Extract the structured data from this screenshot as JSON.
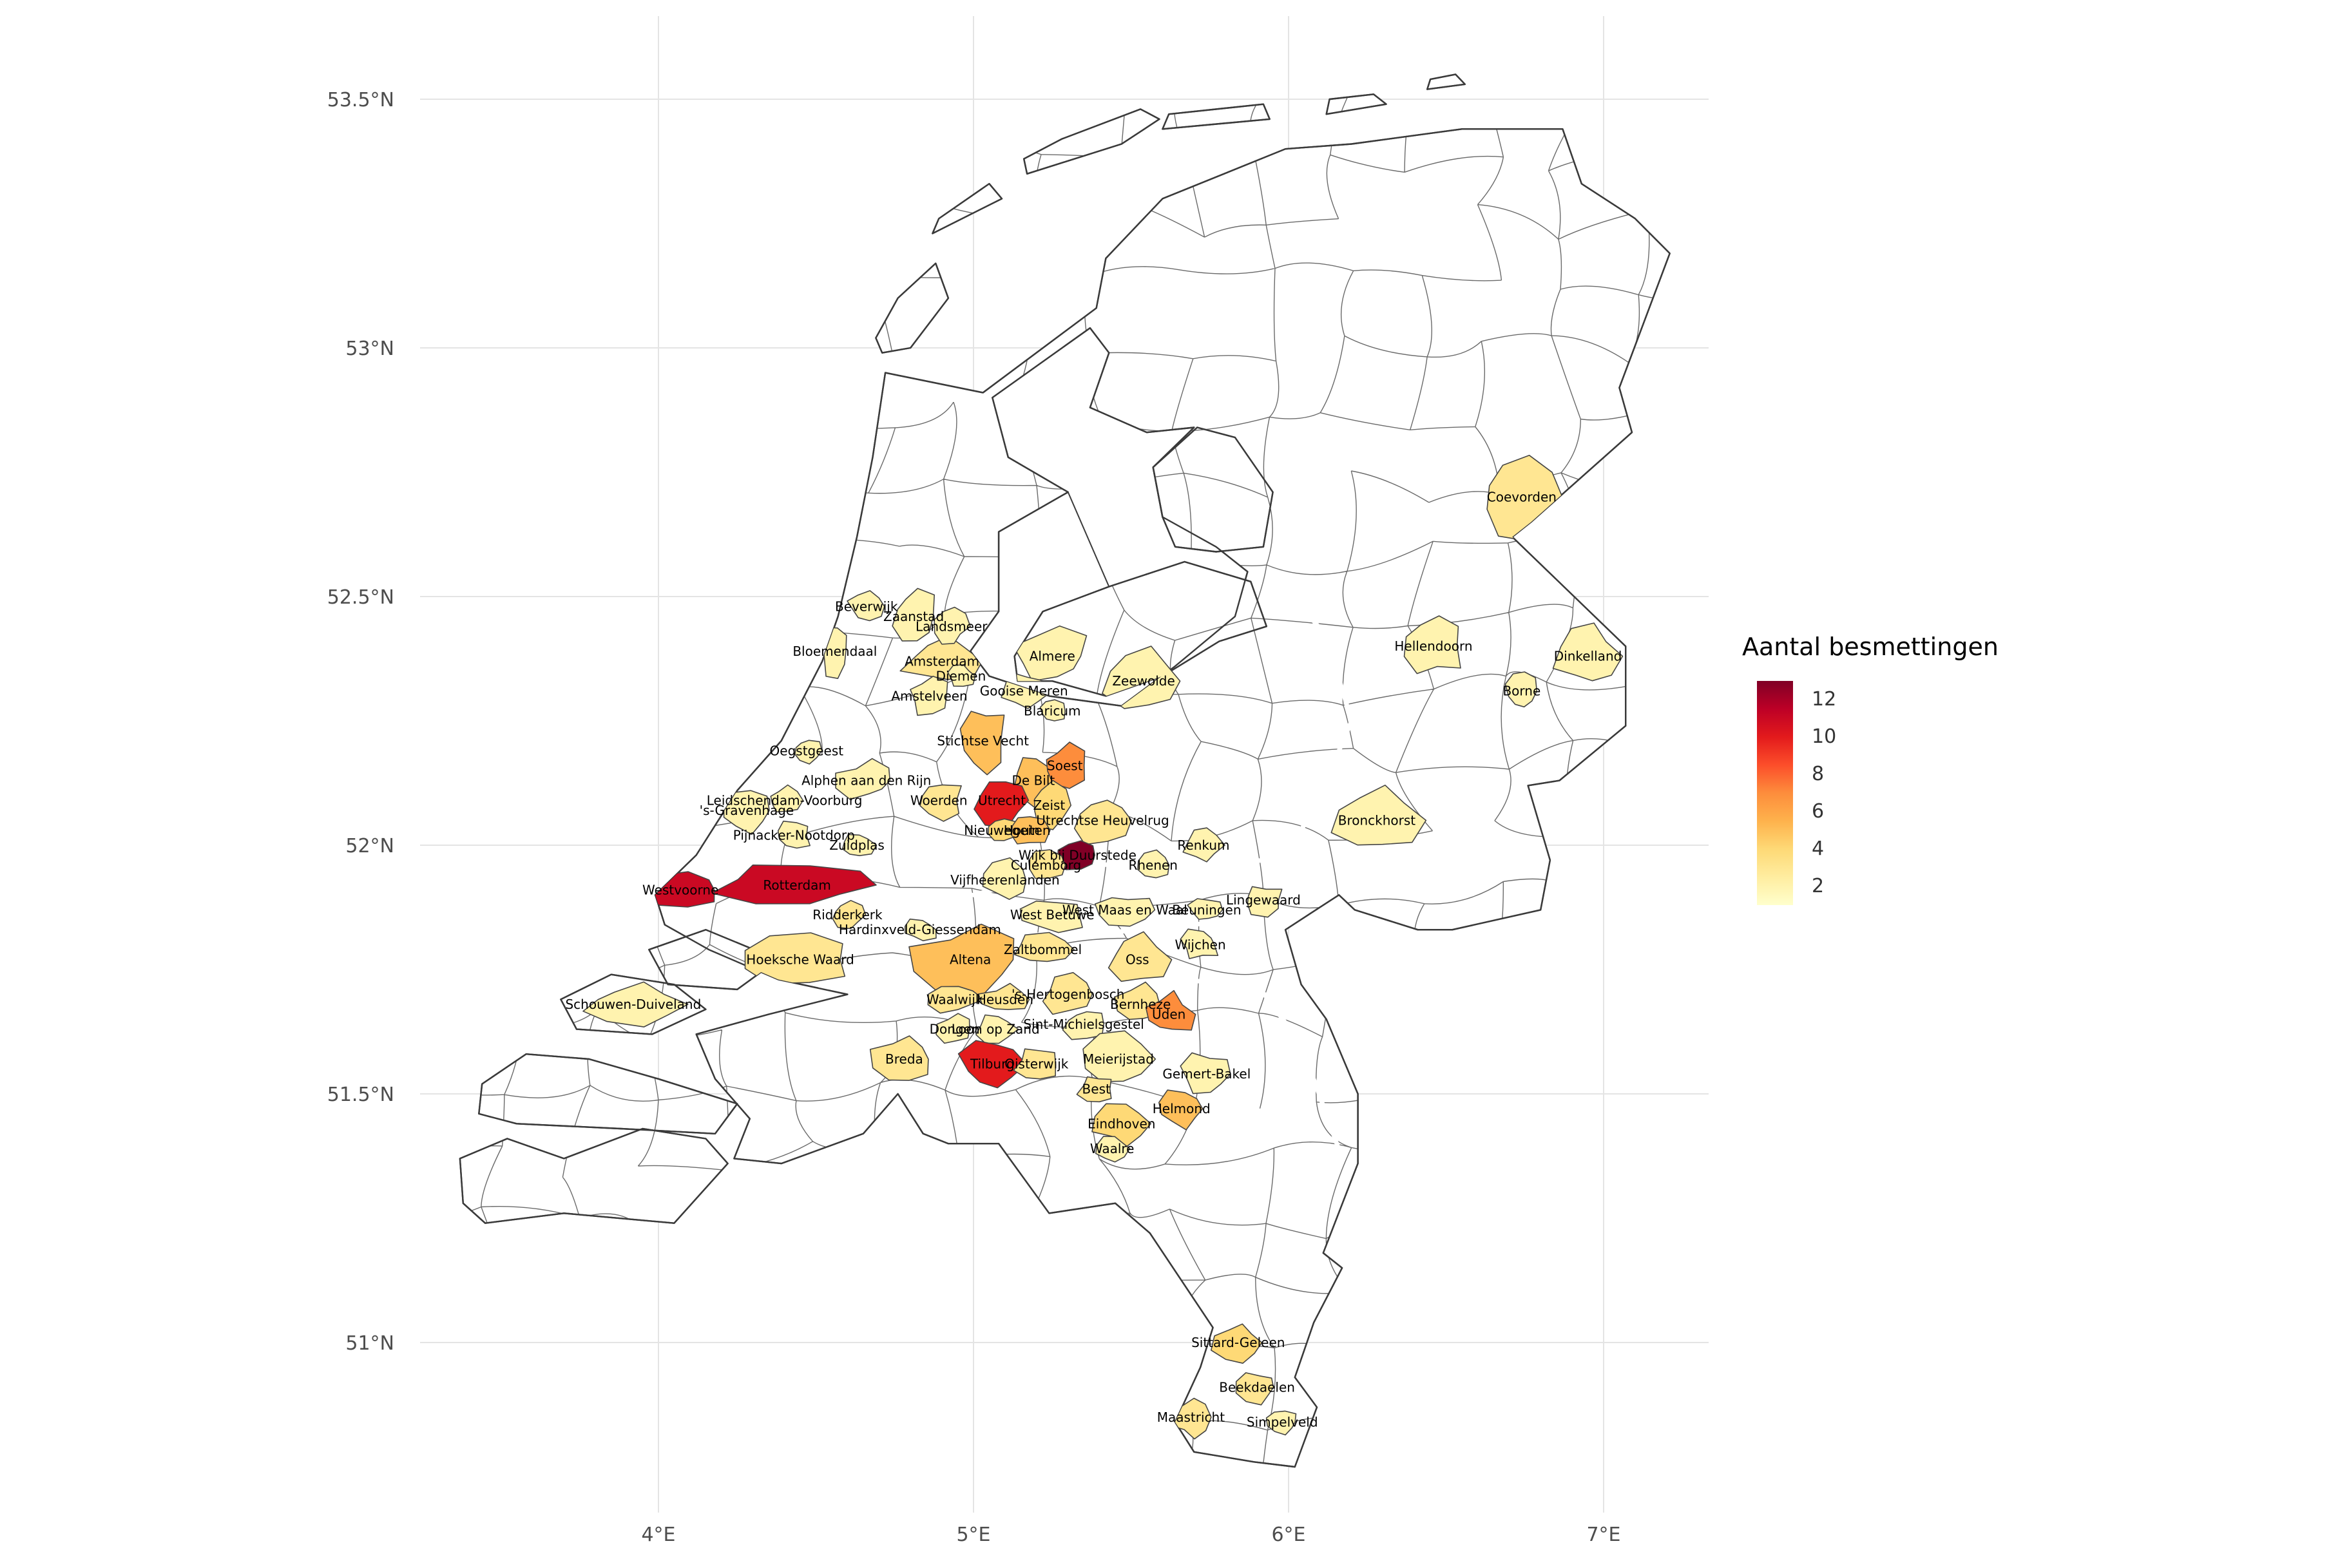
{
  "chart_data": {
    "type": "choropleth",
    "region": "Netherlands municipalities",
    "legend_title": "Aantal besmettingen",
    "color_scale": {
      "palette": [
        "#ffffcc",
        "#ffeda0",
        "#fed976",
        "#feb24c",
        "#fd8d3c",
        "#fc4e2a",
        "#e31a1c",
        "#bd0026",
        "#800026"
      ],
      "domain": [
        1,
        13
      ],
      "legend_ticks": [
        12,
        10,
        8,
        6,
        4,
        2
      ]
    },
    "x_axis": {
      "tick_labels": [
        "4°E",
        "5°E",
        "6°E",
        "7°E"
      ],
      "lons": [
        4,
        5,
        6,
        7
      ]
    },
    "y_axis": {
      "tick_labels": [
        "53.5°N",
        "53°N",
        "52.5°N",
        "52°N",
        "51.5°N",
        "51°N"
      ],
      "lats": [
        53.5,
        53,
        52.5,
        52,
        51.5,
        51
      ]
    },
    "municipalities": [
      {
        "name": "Coevorden",
        "lon": 6.74,
        "lat": 52.7,
        "value": 3,
        "rx": 62,
        "ry": 60
      },
      {
        "name": "Hellendoorn",
        "lon": 6.46,
        "lat": 52.4,
        "value": 2,
        "rx": 46,
        "ry": 44
      },
      {
        "name": "Dinkelland",
        "lon": 6.95,
        "lat": 52.38,
        "value": 2,
        "rx": 48,
        "ry": 46
      },
      {
        "name": "Borne",
        "lon": 6.74,
        "lat": 52.31,
        "value": 2,
        "rx": 26,
        "ry": 30
      },
      {
        "name": "Bronckhorst",
        "lon": 6.28,
        "lat": 52.05,
        "value": 2,
        "rx": 62,
        "ry": 46
      },
      {
        "name": "Zeewolde",
        "lon": 5.54,
        "lat": 52.33,
        "value": 2,
        "rx": 56,
        "ry": 46
      },
      {
        "name": "Almere",
        "lon": 5.25,
        "lat": 52.38,
        "value": 2,
        "rx": 56,
        "ry": 40
      },
      {
        "name": "Amsterdam",
        "lon": 4.9,
        "lat": 52.37,
        "value": 3,
        "rx": 56,
        "ry": 36
      },
      {
        "name": "Zaanstad",
        "lon": 4.81,
        "lat": 52.46,
        "value": 2,
        "rx": 34,
        "ry": 42
      },
      {
        "name": "Landsmeer",
        "lon": 4.93,
        "lat": 52.44,
        "value": 2,
        "rx": 24,
        "ry": 26
      },
      {
        "name": "Beverwijk",
        "lon": 4.66,
        "lat": 52.48,
        "value": 2,
        "rx": 28,
        "ry": 22
      },
      {
        "name": "Bloemendaal",
        "lon": 4.56,
        "lat": 52.39,
        "value": 2,
        "rx": 22,
        "ry": 36
      },
      {
        "name": "Diemen",
        "lon": 4.96,
        "lat": 52.34,
        "value": 2,
        "rx": 20,
        "ry": 16
      },
      {
        "name": "Amstelveen",
        "lon": 4.86,
        "lat": 52.3,
        "value": 2,
        "rx": 30,
        "ry": 28
      },
      {
        "name": "Gooise Meren",
        "lon": 5.16,
        "lat": 52.31,
        "value": 2,
        "rx": 36,
        "ry": 28
      },
      {
        "name": "Blaricum",
        "lon": 5.25,
        "lat": 52.27,
        "value": 2,
        "rx": 20,
        "ry": 16
      },
      {
        "name": "Stichtse Vecht",
        "lon": 5.03,
        "lat": 52.21,
        "value": 5,
        "rx": 36,
        "ry": 52
      },
      {
        "name": "De Bilt",
        "lon": 5.19,
        "lat": 52.13,
        "value": 5,
        "rx": 30,
        "ry": 38
      },
      {
        "name": "Soest",
        "lon": 5.29,
        "lat": 52.16,
        "value": 7,
        "rx": 34,
        "ry": 30
      },
      {
        "name": "Zeist",
        "lon": 5.24,
        "lat": 52.08,
        "value": 4,
        "rx": 28,
        "ry": 32
      },
      {
        "name": "Utrecht",
        "lon": 5.09,
        "lat": 52.09,
        "value": 10,
        "rx": 42,
        "ry": 36
      },
      {
        "name": "Woerden",
        "lon": 4.89,
        "lat": 52.09,
        "value": 3,
        "rx": 36,
        "ry": 28
      },
      {
        "name": "Oegstgeest",
        "lon": 4.47,
        "lat": 52.19,
        "value": 2,
        "rx": 22,
        "ry": 18
      },
      {
        "name": "Alphen aan den Rijn",
        "lon": 4.66,
        "lat": 52.13,
        "value": 2,
        "rx": 42,
        "ry": 28
      },
      {
        "name": "Leidschendam-Voorburg",
        "lon": 4.4,
        "lat": 52.09,
        "value": 2,
        "rx": 24,
        "ry": 20
      },
      {
        "name": "'s-Gravenhage",
        "lon": 4.28,
        "lat": 52.07,
        "value": 2,
        "rx": 36,
        "ry": 30
      },
      {
        "name": "Pijnacker-Nootdorp",
        "lon": 4.43,
        "lat": 52.02,
        "value": 2,
        "rx": 26,
        "ry": 20
      },
      {
        "name": "Zuidplas",
        "lon": 4.63,
        "lat": 52.0,
        "value": 2,
        "rx": 28,
        "ry": 20
      },
      {
        "name": "Nieuwegein",
        "lon": 5.09,
        "lat": 52.03,
        "value": 4,
        "rx": 26,
        "ry": 20
      },
      {
        "name": "Houten",
        "lon": 5.17,
        "lat": 52.03,
        "value": 5,
        "rx": 30,
        "ry": 24
      },
      {
        "name": "Utrechtse Heuvelrug",
        "lon": 5.41,
        "lat": 52.05,
        "value": 3,
        "rx": 46,
        "ry": 36
      },
      {
        "name": "Wijk bij Duurstede",
        "lon": 5.33,
        "lat": 51.98,
        "value": 13,
        "rx": 36,
        "ry": 26
      },
      {
        "name": "Culemborg",
        "lon": 5.23,
        "lat": 51.96,
        "value": 3,
        "rx": 28,
        "ry": 20
      },
      {
        "name": "Vijfheerenlanden",
        "lon": 5.1,
        "lat": 51.93,
        "value": 2,
        "rx": 38,
        "ry": 30
      },
      {
        "name": "Renkum",
        "lon": 5.73,
        "lat": 52.0,
        "value": 2,
        "rx": 28,
        "ry": 26
      },
      {
        "name": "Rhenen",
        "lon": 5.57,
        "lat": 51.96,
        "value": 2,
        "rx": 26,
        "ry": 20
      },
      {
        "name": "Lingewaard",
        "lon": 5.92,
        "lat": 51.89,
        "value": 2,
        "rx": 32,
        "ry": 22
      },
      {
        "name": "Rotterdam",
        "lon": 4.44,
        "lat": 51.92,
        "value": 11,
        "rx": 115,
        "ry": 30
      },
      {
        "name": "Westvoorne",
        "lon": 4.07,
        "lat": 51.91,
        "value": 11,
        "rx": 62,
        "ry": 26
      },
      {
        "name": "Ridderkerk",
        "lon": 4.6,
        "lat": 51.86,
        "value": 3,
        "rx": 24,
        "ry": 18
      },
      {
        "name": "Hardinxveld-Giessendam",
        "lon": 4.83,
        "lat": 51.83,
        "value": 2,
        "rx": 26,
        "ry": 16
      },
      {
        "name": "Hoeksche Waard",
        "lon": 4.45,
        "lat": 51.77,
        "value": 3,
        "rx": 85,
        "ry": 38
      },
      {
        "name": "Schouwen-Duiveland",
        "lon": 3.92,
        "lat": 51.68,
        "value": 2,
        "rx": 80,
        "ry": 30
      },
      {
        "name": "West Betuwe",
        "lon": 5.25,
        "lat": 51.86,
        "value": 2,
        "rx": 50,
        "ry": 25
      },
      {
        "name": "West Maas en Waal",
        "lon": 5.48,
        "lat": 51.87,
        "value": 2,
        "rx": 40,
        "ry": 22
      },
      {
        "name": "Beuningen",
        "lon": 5.74,
        "lat": 51.87,
        "value": 2,
        "rx": 26,
        "ry": 18
      },
      {
        "name": "Wijchen",
        "lon": 5.72,
        "lat": 51.8,
        "value": 2,
        "rx": 30,
        "ry": 22
      },
      {
        "name": "Zaltbommel",
        "lon": 5.22,
        "lat": 51.79,
        "value": 3,
        "rx": 46,
        "ry": 22
      },
      {
        "name": "Altena",
        "lon": 4.99,
        "lat": 51.77,
        "value": 5,
        "rx": 80,
        "ry": 46
      },
      {
        "name": "Oss",
        "lon": 5.52,
        "lat": 51.77,
        "value": 3,
        "rx": 46,
        "ry": 36
      },
      {
        "name": "'s-Hertogenbosch",
        "lon": 5.3,
        "lat": 51.7,
        "value": 3,
        "rx": 40,
        "ry": 30
      },
      {
        "name": "Waalwijk",
        "lon": 4.94,
        "lat": 51.69,
        "value": 3,
        "rx": 36,
        "ry": 20
      },
      {
        "name": "Heusden",
        "lon": 5.1,
        "lat": 51.69,
        "value": 3,
        "rx": 36,
        "ry": 20
      },
      {
        "name": "Bernheze",
        "lon": 5.53,
        "lat": 51.68,
        "value": 3,
        "rx": 36,
        "ry": 28
      },
      {
        "name": "Uden",
        "lon": 5.62,
        "lat": 51.66,
        "value": 7,
        "rx": 36,
        "ry": 30
      },
      {
        "name": "Dongen",
        "lon": 4.94,
        "lat": 51.63,
        "value": 2,
        "rx": 25,
        "ry": 20
      },
      {
        "name": "Loon op Zand",
        "lon": 5.07,
        "lat": 51.63,
        "value": 2,
        "rx": 28,
        "ry": 22
      },
      {
        "name": "Sint-Michielsgestel",
        "lon": 5.35,
        "lat": 51.64,
        "value": 2,
        "rx": 30,
        "ry": 22
      },
      {
        "name": "Breda",
        "lon": 4.78,
        "lat": 51.57,
        "value": 3,
        "rx": 46,
        "ry": 36
      },
      {
        "name": "Tilburg",
        "lon": 5.06,
        "lat": 51.56,
        "value": 10,
        "rx": 46,
        "ry": 38
      },
      {
        "name": "Oisterwijk",
        "lon": 5.2,
        "lat": 51.56,
        "value": 3,
        "rx": 32,
        "ry": 24
      },
      {
        "name": "Meierijstad",
        "lon": 5.46,
        "lat": 51.57,
        "value": 2,
        "rx": 46,
        "ry": 36
      },
      {
        "name": "Gemert-Bakel",
        "lon": 5.74,
        "lat": 51.54,
        "value": 2,
        "rx": 36,
        "ry": 30
      },
      {
        "name": "Best",
        "lon": 5.39,
        "lat": 51.51,
        "value": 3,
        "rx": 26,
        "ry": 20
      },
      {
        "name": "Eindhoven",
        "lon": 5.47,
        "lat": 51.44,
        "value": 4,
        "rx": 40,
        "ry": 30
      },
      {
        "name": "Helmond",
        "lon": 5.66,
        "lat": 51.47,
        "value": 5,
        "rx": 36,
        "ry": 28
      },
      {
        "name": "Waalre",
        "lon": 5.44,
        "lat": 51.39,
        "value": 2,
        "rx": 22,
        "ry": 18
      },
      {
        "name": "Sittard-Geleen",
        "lon": 5.84,
        "lat": 51.0,
        "value": 4,
        "rx": 36,
        "ry": 28
      },
      {
        "name": "Beekdaelen",
        "lon": 5.9,
        "lat": 50.91,
        "value": 3,
        "rx": 32,
        "ry": 24
      },
      {
        "name": "Maastricht",
        "lon": 5.69,
        "lat": 50.85,
        "value": 3,
        "rx": 28,
        "ry": 30
      },
      {
        "name": "Simpelveld",
        "lon": 5.98,
        "lat": 50.84,
        "value": 2,
        "rx": 22,
        "ry": 16
      }
    ]
  }
}
